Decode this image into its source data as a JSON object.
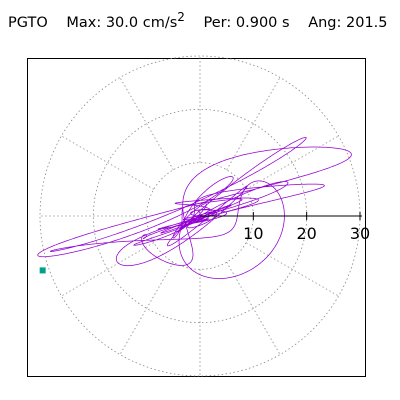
{
  "header": {
    "label": "PGTO",
    "max_label": "Max:",
    "max_value": "30.0",
    "max_unit": "cm/s",
    "max_unit_exp": "2",
    "per_label": "Per:",
    "per_value": "0.900",
    "per_unit": "s",
    "ang_label": "Ang:",
    "ang_value": "201.5"
  },
  "chart_data": {
    "type": "polar-orbit",
    "title": "",
    "r_max": 30,
    "r_ticks": [
      10,
      20,
      30
    ],
    "r_tick_labels": [
      "10",
      "20",
      "30"
    ],
    "spoke_angles_deg": [
      0,
      30,
      60,
      90,
      120,
      150,
      180,
      210,
      240,
      270,
      300,
      330
    ],
    "grid": true,
    "colors": {
      "orbit": "#9400d3",
      "marker": "#00a08a",
      "grid": "#888888",
      "axis": "#000000",
      "frame": "#000000"
    },
    "marker": {
      "x": -29.5,
      "y": -10.2
    },
    "dominant_direction_deg": 201.5
  }
}
